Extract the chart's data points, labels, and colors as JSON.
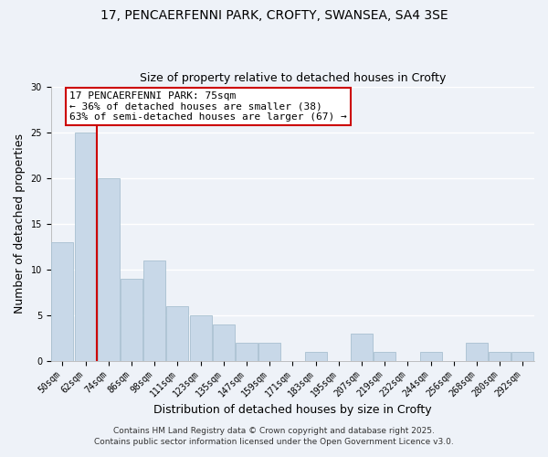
{
  "title1": "17, PENCAERFENNI PARK, CROFTY, SWANSEA, SA4 3SE",
  "title2": "Size of property relative to detached houses in Crofty",
  "xlabel": "Distribution of detached houses by size in Crofty",
  "ylabel": "Number of detached properties",
  "categories": [
    "50sqm",
    "62sqm",
    "74sqm",
    "86sqm",
    "98sqm",
    "111sqm",
    "123sqm",
    "135sqm",
    "147sqm",
    "159sqm",
    "171sqm",
    "183sqm",
    "195sqm",
    "207sqm",
    "219sqm",
    "232sqm",
    "244sqm",
    "256sqm",
    "268sqm",
    "280sqm",
    "292sqm"
  ],
  "values": [
    13,
    25,
    20,
    9,
    11,
    6,
    5,
    4,
    2,
    2,
    0,
    1,
    0,
    3,
    1,
    0,
    1,
    0,
    2,
    1,
    1
  ],
  "bar_color": "#c8d8e8",
  "bar_edge_color": "#a8c0d0",
  "vline_color": "#cc0000",
  "annotation_text": "17 PENCAERFENNI PARK: 75sqm\n← 36% of detached houses are smaller (38)\n63% of semi-detached houses are larger (67) →",
  "annotation_box_color": "#ffffff",
  "annotation_box_edge": "#cc0000",
  "ylim": [
    0,
    30
  ],
  "yticks": [
    0,
    5,
    10,
    15,
    20,
    25,
    30
  ],
  "footer1": "Contains HM Land Registry data © Crown copyright and database right 2025.",
  "footer2": "Contains public sector information licensed under the Open Government Licence v3.0.",
  "background_color": "#eef2f8",
  "grid_color": "#ffffff",
  "title_fontsize": 10,
  "subtitle_fontsize": 9,
  "axis_label_fontsize": 9,
  "tick_fontsize": 7,
  "annotation_fontsize": 8,
  "footer_fontsize": 6.5
}
